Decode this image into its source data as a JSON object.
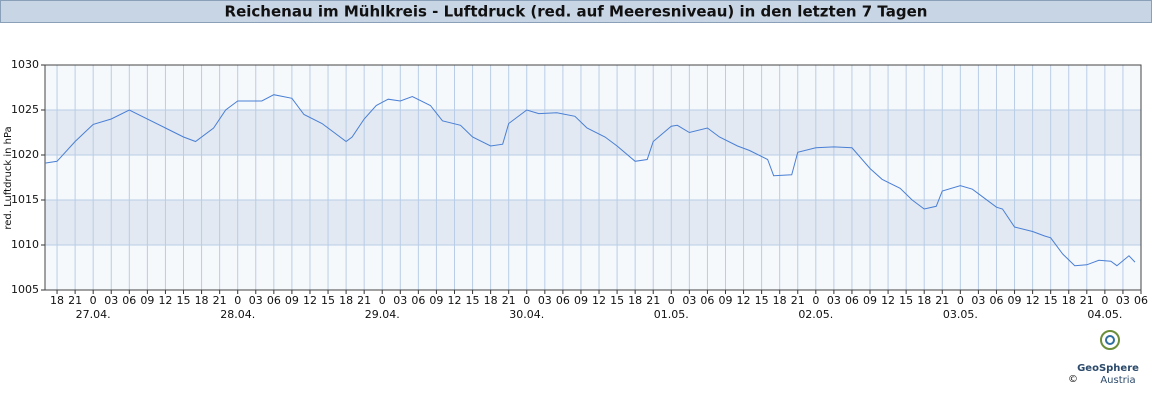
{
  "chart_data": {
    "type": "line",
    "title": "Reichenau im Mühlkreis - Luftdruck (red. auf Meeresniveau) in den letzten 7 Tagen",
    "y_label": "red. Luftdruck in hPa",
    "color": "#4a7fd4",
    "grid": true,
    "xlim": [
      -8,
      174
    ],
    "ylim": [
      1005,
      1030
    ],
    "yticks": [
      1005,
      1010,
      1015,
      1020,
      1025,
      1030
    ],
    "xticks": [
      {
        "value": -6,
        "label": "18"
      },
      {
        "value": -3,
        "label": "21"
      },
      0,
      {
        "value": 3,
        "label": "03"
      },
      {
        "value": 6,
        "label": "06"
      },
      {
        "value": 9,
        "label": "09"
      },
      {
        "value": 12,
        "label": "12"
      },
      {
        "value": 15,
        "label": "15"
      },
      {
        "value": 18,
        "label": "18"
      },
      {
        "value": 21,
        "label": "21"
      },
      {
        "value": 24,
        "label": "0"
      },
      {
        "value": 27,
        "label": "03"
      },
      {
        "value": 30,
        "label": "06"
      },
      {
        "value": 33,
        "label": "09"
      },
      {
        "value": 36,
        "label": "12"
      },
      {
        "value": 39,
        "label": "15"
      },
      {
        "value": 42,
        "label": "18"
      },
      {
        "value": 45,
        "label": "21"
      },
      {
        "value": 48,
        "label": "0"
      },
      {
        "value": 51,
        "label": "03"
      },
      {
        "value": 54,
        "label": "06"
      },
      {
        "value": 57,
        "label": "09"
      },
      {
        "value": 60,
        "label": "12"
      },
      {
        "value": 63,
        "label": "15"
      },
      {
        "value": 66,
        "label": "18"
      },
      {
        "value": 69,
        "label": "21"
      },
      {
        "value": 72,
        "label": "0"
      },
      {
        "value": 75,
        "label": "03"
      },
      {
        "value": 78,
        "label": "06"
      },
      {
        "value": 81,
        "label": "09"
      },
      {
        "value": 84,
        "label": "12"
      },
      {
        "value": 87,
        "label": "15"
      },
      {
        "value": 90,
        "label": "18"
      },
      {
        "value": 93,
        "label": "21"
      },
      {
        "value": 96,
        "label": "0"
      },
      {
        "value": 99,
        "label": "03"
      },
      {
        "value": 102,
        "label": "06"
      },
      {
        "value": 105,
        "label": "09"
      },
      {
        "value": 108,
        "label": "12"
      },
      {
        "value": 111,
        "label": "15"
      },
      {
        "value": 114,
        "label": "18"
      },
      {
        "value": 117,
        "label": "21"
      },
      {
        "value": 120,
        "label": "0"
      },
      {
        "value": 123,
        "label": "03"
      },
      {
        "value": 126,
        "label": "06"
      },
      {
        "value": 129,
        "label": "09"
      },
      {
        "value": 132,
        "label": "12"
      },
      {
        "value": 135,
        "label": "15"
      },
      {
        "value": 138,
        "label": "18"
      },
      {
        "value": 141,
        "label": "21"
      },
      {
        "value": 144,
        "label": "0"
      },
      {
        "value": 147,
        "label": "03"
      },
      {
        "value": 150,
        "label": "06"
      },
      {
        "value": 153,
        "label": "09"
      },
      {
        "value": 156,
        "label": "12"
      },
      {
        "value": 159,
        "label": "15"
      },
      {
        "value": 162,
        "label": "18"
      },
      {
        "value": 165,
        "label": "21"
      },
      {
        "value": 168,
        "label": "0"
      },
      {
        "value": 171,
        "label": "03"
      },
      {
        "value": 174,
        "label": "06"
      }
    ],
    "date_labels": [
      0,
      {
        "value": 0,
        "label": "27.04."
      },
      {
        "value": 24,
        "label": "28.04."
      },
      {
        "value": 48,
        "label": "29.04."
      },
      {
        "value": 72,
        "label": "30.04."
      },
      {
        "value": 96,
        "label": "01.05."
      },
      {
        "value": 120,
        "label": "02.05."
      },
      {
        "value": 144,
        "label": "03.05."
      },
      {
        "value": 168,
        "label": "04.05."
      }
    ],
    "x": [
      -8,
      -6,
      -3,
      0,
      3,
      6,
      12,
      15,
      17,
      20,
      22,
      24,
      28,
      30,
      33,
      35,
      38,
      40,
      42,
      43,
      45,
      47,
      49,
      51,
      53,
      56,
      58,
      61,
      63,
      66,
      68,
      69,
      72,
      74,
      77,
      80,
      82,
      85,
      87,
      90,
      92,
      93,
      96,
      97,
      99,
      102,
      104,
      107,
      109,
      112,
      113,
      116,
      117,
      120,
      123,
      126,
      129,
      131,
      134,
      136,
      138,
      140,
      141,
      144,
      146,
      148,
      150,
      151,
      153,
      156,
      158,
      159,
      161,
      163,
      165,
      167,
      169,
      170,
      172,
      173
    ],
    "values": [
      1019.1,
      1019.3,
      1021.5,
      1023.4,
      1024.0,
      1025.0,
      1023.0,
      1022.0,
      1021.5,
      1023.0,
      1025.0,
      1026.0,
      1026.0,
      1026.7,
      1026.3,
      1024.5,
      1023.5,
      1022.5,
      1021.5,
      1022.0,
      1024.0,
      1025.5,
      1026.2,
      1026.0,
      1026.5,
      1025.5,
      1023.8,
      1023.3,
      1022.0,
      1021.0,
      1021.2,
      1023.5,
      1025.0,
      1024.6,
      1024.7,
      1024.3,
      1023.0,
      1022.0,
      1021.0,
      1019.3,
      1019.5,
      1021.5,
      1023.2,
      1023.3,
      1022.5,
      1023.0,
      1022.0,
      1021.0,
      1020.5,
      1019.5,
      1017.7,
      1017.8,
      1020.3,
      1020.8,
      1020.9,
      1020.8,
      1018.5,
      1017.3,
      1016.3,
      1015.0,
      1014.0,
      1014.3,
      1016.0,
      1016.6,
      1016.2,
      1015.2,
      1014.2,
      1014.0,
      1012.0,
      1011.5,
      1011.0,
      1010.8,
      1009.0,
      1007.7,
      1007.8,
      1008.3,
      1008.2,
      1007.7,
      1008.8,
      1008.1
    ]
  },
  "logo": {
    "name": "GeoSphere",
    "sub": "Austria",
    "copyright": "©"
  }
}
